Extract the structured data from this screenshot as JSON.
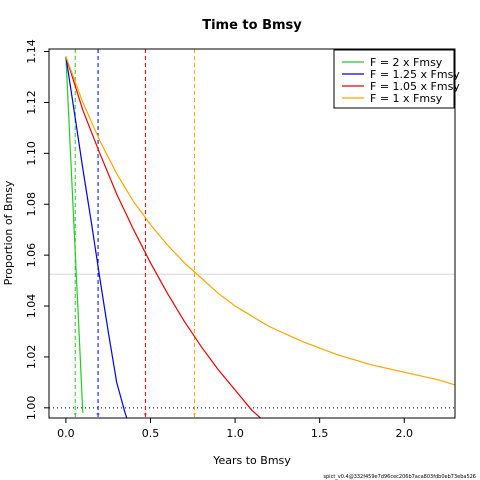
{
  "chart_data": {
    "type": "line",
    "title": "Time to Bmsy",
    "xlabel": "Years to Bmsy",
    "ylabel": "Proportion of Bmsy",
    "xlim": [
      -0.1,
      2.3
    ],
    "ylim": [
      0.996,
      1.141
    ],
    "xticks": [
      0,
      0.5,
      1,
      1.5,
      2
    ],
    "xtick_labels": [
      "0.0",
      "0.5",
      "1.0",
      "1.5",
      "2.0"
    ],
    "yticks": [
      1.0,
      1.02,
      1.04,
      1.06,
      1.08,
      1.1,
      1.12,
      1.14
    ],
    "ytick_labels": [
      "1.00",
      "1.02",
      "1.04",
      "1.06",
      "1.08",
      "1.10",
      "1.12",
      "1.14"
    ],
    "grid": false,
    "legend_position": "top-right",
    "reference_lines": {
      "bmsy_level": 1.0,
      "bmsy_level_style": "dotted",
      "gray_line_y": 1.0525,
      "gray_line_color": "#d8d8d8"
    },
    "series": [
      {
        "name": "F = 2 x Fmsy",
        "color": "#22cc22",
        "x": [
          0,
          0.02,
          0.04,
          0.06,
          0.08,
          0.1
        ],
        "y": [
          1.138,
          1.11,
          1.082,
          1.054,
          1.026,
          0.998
        ],
        "time_to_bmsy": 0.055
      },
      {
        "name": "F = 1.25 x Fmsy",
        "color": "#0000ee",
        "x": [
          0,
          0.05,
          0.1,
          0.15,
          0.2,
          0.25,
          0.3,
          0.35,
          0.36
        ],
        "y": [
          1.138,
          1.116,
          1.094,
          1.073,
          1.051,
          1.03,
          1.01,
          0.998,
          0.996
        ],
        "time_to_bmsy": 0.19
      },
      {
        "name": "F = 1.05 x Fmsy",
        "color": "#ee0000",
        "x": [
          0,
          0.1,
          0.2,
          0.3,
          0.4,
          0.5,
          0.6,
          0.7,
          0.8,
          0.9,
          1.0,
          1.1,
          1.15
        ],
        "y": [
          1.138,
          1.117,
          1.1,
          1.084,
          1.07,
          1.057,
          1.045,
          1.034,
          1.024,
          1.015,
          1.007,
          0.999,
          0.996
        ],
        "time_to_bmsy": 0.47
      },
      {
        "name": "F = 1 x Fmsy",
        "color": "#ffa500",
        "x": [
          0,
          0.1,
          0.2,
          0.3,
          0.4,
          0.5,
          0.6,
          0.7,
          0.8,
          0.9,
          1.0,
          1.2,
          1.4,
          1.6,
          1.8,
          2.0,
          2.2,
          2.3
        ],
        "y": [
          1.138,
          1.12,
          1.105,
          1.092,
          1.081,
          1.072,
          1.064,
          1.057,
          1.051,
          1.045,
          1.04,
          1.032,
          1.026,
          1.021,
          1.017,
          1.014,
          1.011,
          1.009
        ],
        "time_to_bmsy": 0.76
      }
    ]
  },
  "footer": {
    "version_text": "spict_v0.4@332f459e7d96cec206b7aca803fdb0eb73eba526"
  }
}
